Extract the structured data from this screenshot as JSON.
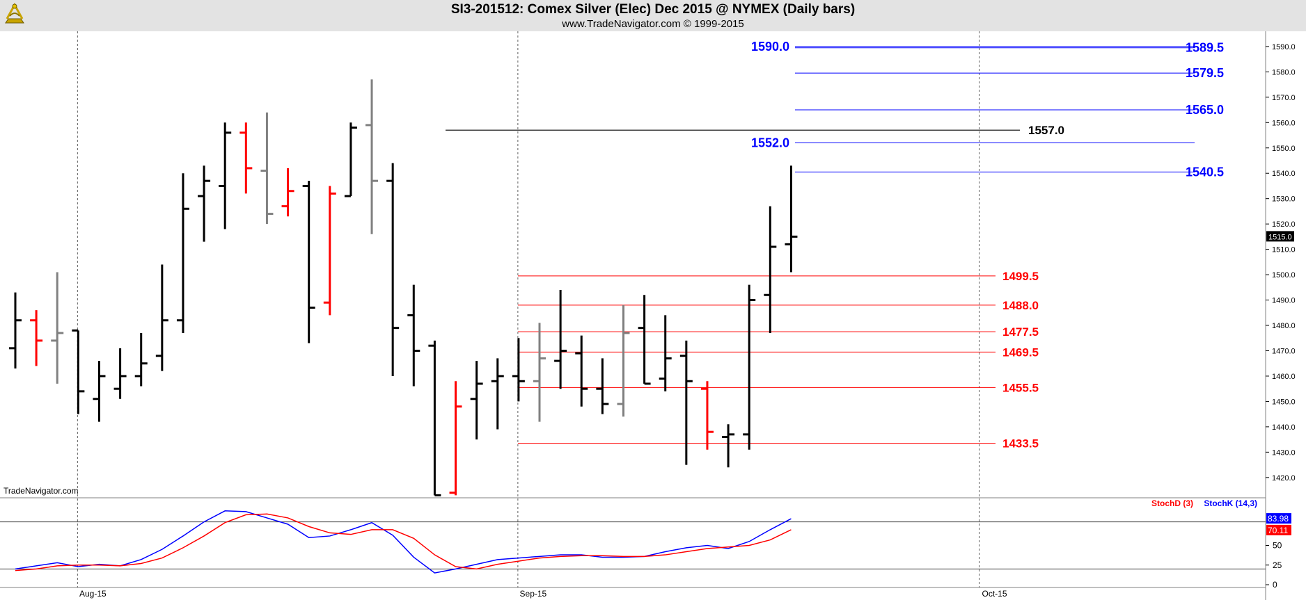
{
  "header": {
    "title": "SI3-201512:  Comex Silver (Elec) Dec 2015 @ NYMEX  (Daily bars)",
    "subtitle": "www.TradeNavigator.com © 1999-2015",
    "logo_icon": "sextant-logo-icon"
  },
  "watermark": "TradeNavigator.com",
  "colors": {
    "up_bar": "#000000",
    "down_bar": "#ff0000",
    "neutral_bar": "#808080",
    "resistance_line": "#0000ff",
    "support_line": "#ff0000",
    "reference_line": "#404040",
    "stoch_k": "#0000ff",
    "stoch_d": "#ff0000",
    "header_bg": "#e3e3e3"
  },
  "chart_data": [
    {
      "type": "ohlc",
      "title": "SI3-201512:  Comex Silver (Elec) Dec 2015 @ NYMEX  (Daily bars)",
      "ylim": [
        1412,
        1596
      ],
      "yticks": [
        "1420.0",
        "1430.0",
        "1440.0",
        "1450.0",
        "1460.0",
        "1470.0",
        "1480.0",
        "1490.0",
        "1500.0",
        "1510.0",
        "1520.0",
        "1530.0",
        "1540.0",
        "1550.0",
        "1560.0",
        "1570.0",
        "1580.0",
        "1590.0"
      ],
      "xticks": [
        {
          "label": "Aug-15",
          "bar": 3
        },
        {
          "label": "Sep-15",
          "bar": 24
        },
        {
          "label": "Oct-15",
          "bar": 46
        }
      ],
      "grid": "dashed vertical at month starts",
      "last_price": "1515.0",
      "bars": [
        {
          "o": 1471,
          "h": 1493,
          "l": 1463,
          "c": 1482,
          "color": "up"
        },
        {
          "o": 1482,
          "h": 1486,
          "l": 1464,
          "c": 1474,
          "color": "down"
        },
        {
          "o": 1474,
          "h": 1501,
          "l": 1457,
          "c": 1477,
          "color": "neutral"
        },
        {
          "o": 1478,
          "h": 1478,
          "l": 1445,
          "c": 1454,
          "color": "up"
        },
        {
          "o": 1451,
          "h": 1466,
          "l": 1442,
          "c": 1460,
          "color": "up"
        },
        {
          "o": 1455,
          "h": 1471,
          "l": 1451,
          "c": 1460,
          "color": "up"
        },
        {
          "o": 1460,
          "h": 1477,
          "l": 1456,
          "c": 1465,
          "color": "up"
        },
        {
          "o": 1468,
          "h": 1504,
          "l": 1462,
          "c": 1482,
          "color": "up"
        },
        {
          "o": 1482,
          "h": 1540,
          "l": 1477,
          "c": 1526,
          "color": "up"
        },
        {
          "o": 1531,
          "h": 1543,
          "l": 1513,
          "c": 1537,
          "color": "up"
        },
        {
          "o": 1535,
          "h": 1560,
          "l": 1518,
          "c": 1556,
          "color": "up"
        },
        {
          "o": 1556,
          "h": 1560,
          "l": 1532,
          "c": 1542,
          "color": "down"
        },
        {
          "o": 1541,
          "h": 1564,
          "l": 1520,
          "c": 1524,
          "color": "neutral"
        },
        {
          "o": 1527,
          "h": 1542,
          "l": 1523,
          "c": 1533,
          "color": "down"
        },
        {
          "o": 1535,
          "h": 1537,
          "l": 1473,
          "c": 1487,
          "color": "up"
        },
        {
          "o": 1489,
          "h": 1535,
          "l": 1484,
          "c": 1532,
          "color": "down"
        },
        {
          "o": 1531,
          "h": 1560,
          "l": 1531,
          "c": 1558,
          "color": "up"
        },
        {
          "o": 1559,
          "h": 1577,
          "l": 1516,
          "c": 1537,
          "color": "neutral"
        },
        {
          "o": 1537,
          "h": 1544,
          "l": 1460,
          "c": 1479,
          "color": "up"
        },
        {
          "o": 1484,
          "h": 1496,
          "l": 1456,
          "c": 1470,
          "color": "up"
        },
        {
          "o": 1472,
          "h": 1474,
          "l": 1413,
          "c": 1413,
          "color": "up"
        },
        {
          "o": 1414,
          "h": 1458,
          "l": 1413,
          "c": 1448,
          "color": "down"
        },
        {
          "o": 1451,
          "h": 1466,
          "l": 1435,
          "c": 1457,
          "color": "up"
        },
        {
          "o": 1458,
          "h": 1467,
          "l": 1439,
          "c": 1460,
          "color": "up"
        },
        {
          "o": 1460,
          "h": 1475,
          "l": 1450,
          "c": 1458,
          "color": "up"
        },
        {
          "o": 1458,
          "h": 1481,
          "l": 1442,
          "c": 1467,
          "color": "neutral"
        },
        {
          "o": 1466,
          "h": 1494,
          "l": 1455,
          "c": 1470,
          "color": "up"
        },
        {
          "o": 1469,
          "h": 1476,
          "l": 1448,
          "c": 1455,
          "color": "up"
        },
        {
          "o": 1455,
          "h": 1467,
          "l": 1445,
          "c": 1449,
          "color": "up"
        },
        {
          "o": 1449,
          "h": 1488,
          "l": 1444,
          "c": 1477,
          "color": "neutral"
        },
        {
          "o": 1479,
          "h": 1492,
          "l": 1457,
          "c": 1457,
          "color": "up"
        },
        {
          "o": 1459,
          "h": 1484,
          "l": 1454,
          "c": 1467,
          "color": "up"
        },
        {
          "o": 1468,
          "h": 1474,
          "l": 1425,
          "c": 1458,
          "color": "up"
        },
        {
          "o": 1455,
          "h": 1458,
          "l": 1431,
          "c": 1438,
          "color": "down"
        },
        {
          "o": 1436,
          "h": 1441,
          "l": 1424,
          "c": 1437,
          "color": "up"
        },
        {
          "o": 1437,
          "h": 1496,
          "l": 1431,
          "c": 1490,
          "color": "up"
        },
        {
          "o": 1492,
          "h": 1527,
          "l": 1477,
          "c": 1511,
          "color": "up"
        },
        {
          "o": 1512,
          "h": 1543,
          "l": 1501,
          "c": 1515,
          "color": "up"
        }
      ],
      "levels": {
        "resistance": [
          {
            "value": 1589.5,
            "label": "1589.5"
          },
          {
            "value": 1579.5,
            "label": "1579.5"
          },
          {
            "value": 1565.0,
            "label": "1565.0"
          },
          {
            "value": 1540.5,
            "label": "1540.5"
          },
          {
            "value": 1552.0,
            "label": "",
            "side_label": "1552.0"
          },
          {
            "value": 1590.0,
            "label": "",
            "side_label": "1590.0"
          }
        ],
        "reference": {
          "value": 1557.0,
          "label": "1557.0"
        },
        "support": [
          {
            "value": 1499.5,
            "label": "1499.5"
          },
          {
            "value": 1488.0,
            "label": "1488.0"
          },
          {
            "value": 1477.5,
            "label": "1477.5"
          },
          {
            "value": 1469.5,
            "label": "1469.5"
          },
          {
            "value": 1455.5,
            "label": "1455.5"
          },
          {
            "value": 1433.5,
            "label": "1433.5"
          }
        ]
      }
    },
    {
      "type": "line",
      "ylim": [
        0,
        100
      ],
      "yticks": [
        "0",
        "25",
        "50"
      ],
      "bands": [
        20,
        80
      ],
      "legend": [
        "StochD (3)",
        "StochK (14,3)"
      ],
      "series": [
        {
          "name": "StochK (14,3)",
          "last_label": "83.98",
          "values": [
            20,
            24,
            28,
            23,
            26,
            24,
            32,
            45,
            62,
            80,
            94,
            93,
            85,
            77,
            60,
            62,
            70,
            79,
            63,
            35,
            15,
            20,
            26,
            32,
            34,
            36,
            38,
            38,
            35,
            35,
            36,
            42,
            47,
            50,
            46,
            55,
            70,
            84
          ]
        },
        {
          "name": "StochD (3)",
          "values": [
            18,
            20,
            24,
            25,
            25,
            24,
            27,
            34,
            47,
            62,
            79,
            89,
            90,
            85,
            74,
            66,
            64,
            70,
            70,
            59,
            38,
            23,
            20,
            26,
            30,
            34,
            36,
            37,
            37,
            36,
            36,
            38,
            42,
            46,
            48,
            50,
            57,
            70
          ]
        }
      ]
    }
  ]
}
